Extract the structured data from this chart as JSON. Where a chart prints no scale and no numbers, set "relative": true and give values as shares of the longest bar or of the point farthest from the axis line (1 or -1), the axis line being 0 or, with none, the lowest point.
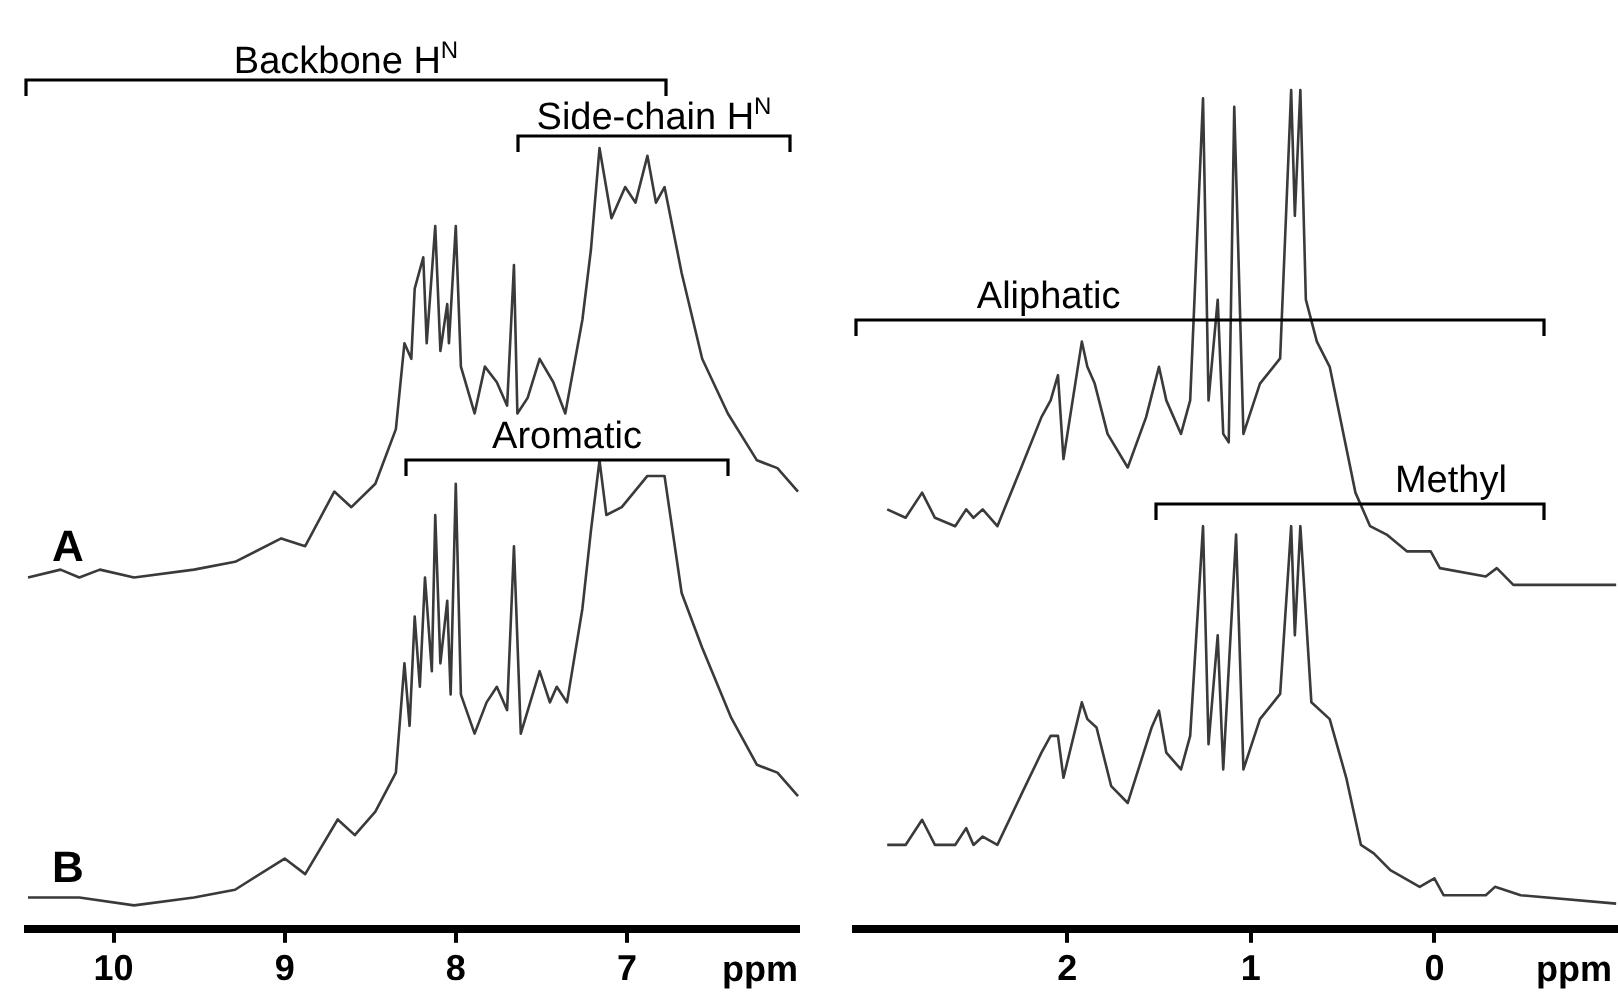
{
  "chart_data": [
    {
      "type": "line",
      "xlabel": "ppm",
      "relative": true,
      "xlim": [
        10.5,
        6.0
      ],
      "xticks": [
        10,
        9,
        8,
        7
      ],
      "grid": false,
      "legend": false,
      "marker": "none",
      "line_style": "solid",
      "annotations": [
        "Backbone H$^{N}$",
        "Side-chain H$^{N}$",
        "Aromatic"
      ],
      "series": [
        {
          "name": "A",
          "color": "#3a3a3a",
          "x": [
            10.5,
            10.31,
            10.2,
            10.08,
            9.88,
            9.53,
            9.29,
            9.02,
            8.88,
            8.71,
            8.61,
            8.47,
            8.35,
            8.3,
            8.26,
            8.24,
            8.19,
            8.17,
            8.12,
            8.09,
            8.05,
            8.04,
            8.0,
            7.97,
            7.89,
            7.83,
            7.76,
            7.7,
            7.66,
            7.64,
            7.58,
            7.51,
            7.43,
            7.36,
            7.26,
            7.21,
            7.16,
            7.09,
            7.01,
            6.95,
            6.88,
            6.83,
            6.78,
            6.68,
            6.56,
            6.41,
            6.24,
            6.12,
            6.0
          ],
          "values": [
            0.45,
            0.46,
            0.45,
            0.46,
            0.45,
            0.46,
            0.47,
            0.5,
            0.49,
            0.56,
            0.54,
            0.57,
            0.64,
            0.75,
            0.73,
            0.82,
            0.86,
            0.75,
            0.9,
            0.74,
            0.8,
            0.75,
            0.9,
            0.72,
            0.66,
            0.72,
            0.7,
            0.67,
            0.85,
            0.66,
            0.68,
            0.73,
            0.7,
            0.66,
            0.78,
            0.87,
            1.0,
            0.91,
            0.95,
            0.93,
            0.99,
            0.93,
            0.95,
            0.84,
            0.73,
            0.66,
            0.6,
            0.59,
            0.56
          ]
        },
        {
          "name": "B",
          "color": "#3a3a3a",
          "x": [
            10.5,
            10.31,
            10.2,
            9.88,
            9.53,
            9.29,
            9.0,
            8.88,
            8.69,
            8.59,
            8.47,
            8.35,
            8.3,
            8.27,
            8.24,
            8.21,
            8.18,
            8.14,
            8.12,
            8.09,
            8.05,
            8.03,
            8.0,
            7.97,
            7.89,
            7.82,
            7.76,
            7.7,
            7.66,
            7.62,
            7.51,
            7.45,
            7.41,
            7.35,
            7.26,
            7.21,
            7.16,
            7.12,
            7.03,
            6.88,
            6.78,
            6.68,
            6.56,
            6.39,
            6.24,
            6.12,
            6.0
          ],
          "values": [
            0.04,
            0.04,
            0.04,
            0.03,
            0.04,
            0.05,
            0.09,
            0.07,
            0.14,
            0.12,
            0.15,
            0.2,
            0.34,
            0.26,
            0.4,
            0.31,
            0.45,
            0.33,
            0.53,
            0.34,
            0.42,
            0.3,
            0.57,
            0.3,
            0.25,
            0.29,
            0.31,
            0.28,
            0.49,
            0.25,
            0.33,
            0.29,
            0.31,
            0.29,
            0.41,
            0.51,
            0.6,
            0.53,
            0.54,
            0.58,
            0.58,
            0.43,
            0.36,
            0.27,
            0.21,
            0.2,
            0.17
          ]
        }
      ]
    },
    {
      "type": "line",
      "xlabel": "ppm",
      "relative": true,
      "xlim": [
        3.15,
        -1.0
      ],
      "xticks": [
        2,
        1,
        0
      ],
      "grid": false,
      "legend": false,
      "marker": "none",
      "line_style": "solid",
      "annotations": [
        "Aliphatic",
        "Methyl"
      ],
      "series": [
        {
          "color": "#3a3a3a",
          "x": [
            2.98,
            2.88,
            2.79,
            2.72,
            2.61,
            2.55,
            2.51,
            2.46,
            2.38,
            2.25,
            2.14,
            2.09,
            2.05,
            2.02,
            1.92,
            1.89,
            1.85,
            1.78,
            1.67,
            1.57,
            1.5,
            1.46,
            1.38,
            1.33,
            1.26,
            1.23,
            1.18,
            1.15,
            1.12,
            1.09,
            1.04,
            0.95,
            0.84,
            0.78,
            0.76,
            0.73,
            0.7,
            0.64,
            0.57,
            0.43,
            0.35,
            0.26,
            0.15,
            0.02,
            -0.03,
            -0.28,
            -0.34,
            -0.43,
            -0.65,
            -0.99
          ],
          "values": [
            0.5,
            0.49,
            0.52,
            0.49,
            0.48,
            0.5,
            0.49,
            0.5,
            0.48,
            0.55,
            0.61,
            0.63,
            0.66,
            0.56,
            0.7,
            0.67,
            0.65,
            0.59,
            0.55,
            0.61,
            0.67,
            0.63,
            0.59,
            0.63,
            0.99,
            0.63,
            0.75,
            0.59,
            0.58,
            0.98,
            0.59,
            0.65,
            0.68,
            1.0,
            0.85,
            1.0,
            0.75,
            0.7,
            0.67,
            0.52,
            0.48,
            0.47,
            0.45,
            0.45,
            0.43,
            0.42,
            0.43,
            0.41,
            0.41,
            0.41
          ]
        },
        {
          "color": "#3a3a3a",
          "x": [
            2.98,
            2.88,
            2.79,
            2.72,
            2.61,
            2.55,
            2.51,
            2.46,
            2.38,
            2.25,
            2.14,
            2.09,
            2.05,
            2.02,
            1.92,
            1.89,
            1.84,
            1.76,
            1.67,
            1.54,
            1.5,
            1.46,
            1.38,
            1.33,
            1.26,
            1.23,
            1.18,
            1.15,
            1.08,
            1.04,
            0.95,
            0.84,
            0.78,
            0.76,
            0.73,
            0.67,
            0.57,
            0.48,
            0.4,
            0.33,
            0.24,
            0.08,
            0.0,
            -0.05,
            -0.28,
            -0.33,
            -0.47,
            -0.99
          ],
          "values": [
            0.1,
            0.1,
            0.13,
            0.1,
            0.1,
            0.12,
            0.1,
            0.11,
            0.1,
            0.16,
            0.21,
            0.23,
            0.23,
            0.18,
            0.27,
            0.25,
            0.24,
            0.17,
            0.15,
            0.24,
            0.26,
            0.21,
            0.19,
            0.23,
            0.48,
            0.22,
            0.35,
            0.19,
            0.47,
            0.19,
            0.25,
            0.28,
            0.48,
            0.35,
            0.48,
            0.27,
            0.25,
            0.18,
            0.1,
            0.09,
            0.07,
            0.05,
            0.06,
            0.04,
            0.04,
            0.05,
            0.04,
            0.03
          ]
        }
      ]
    }
  ]
}
